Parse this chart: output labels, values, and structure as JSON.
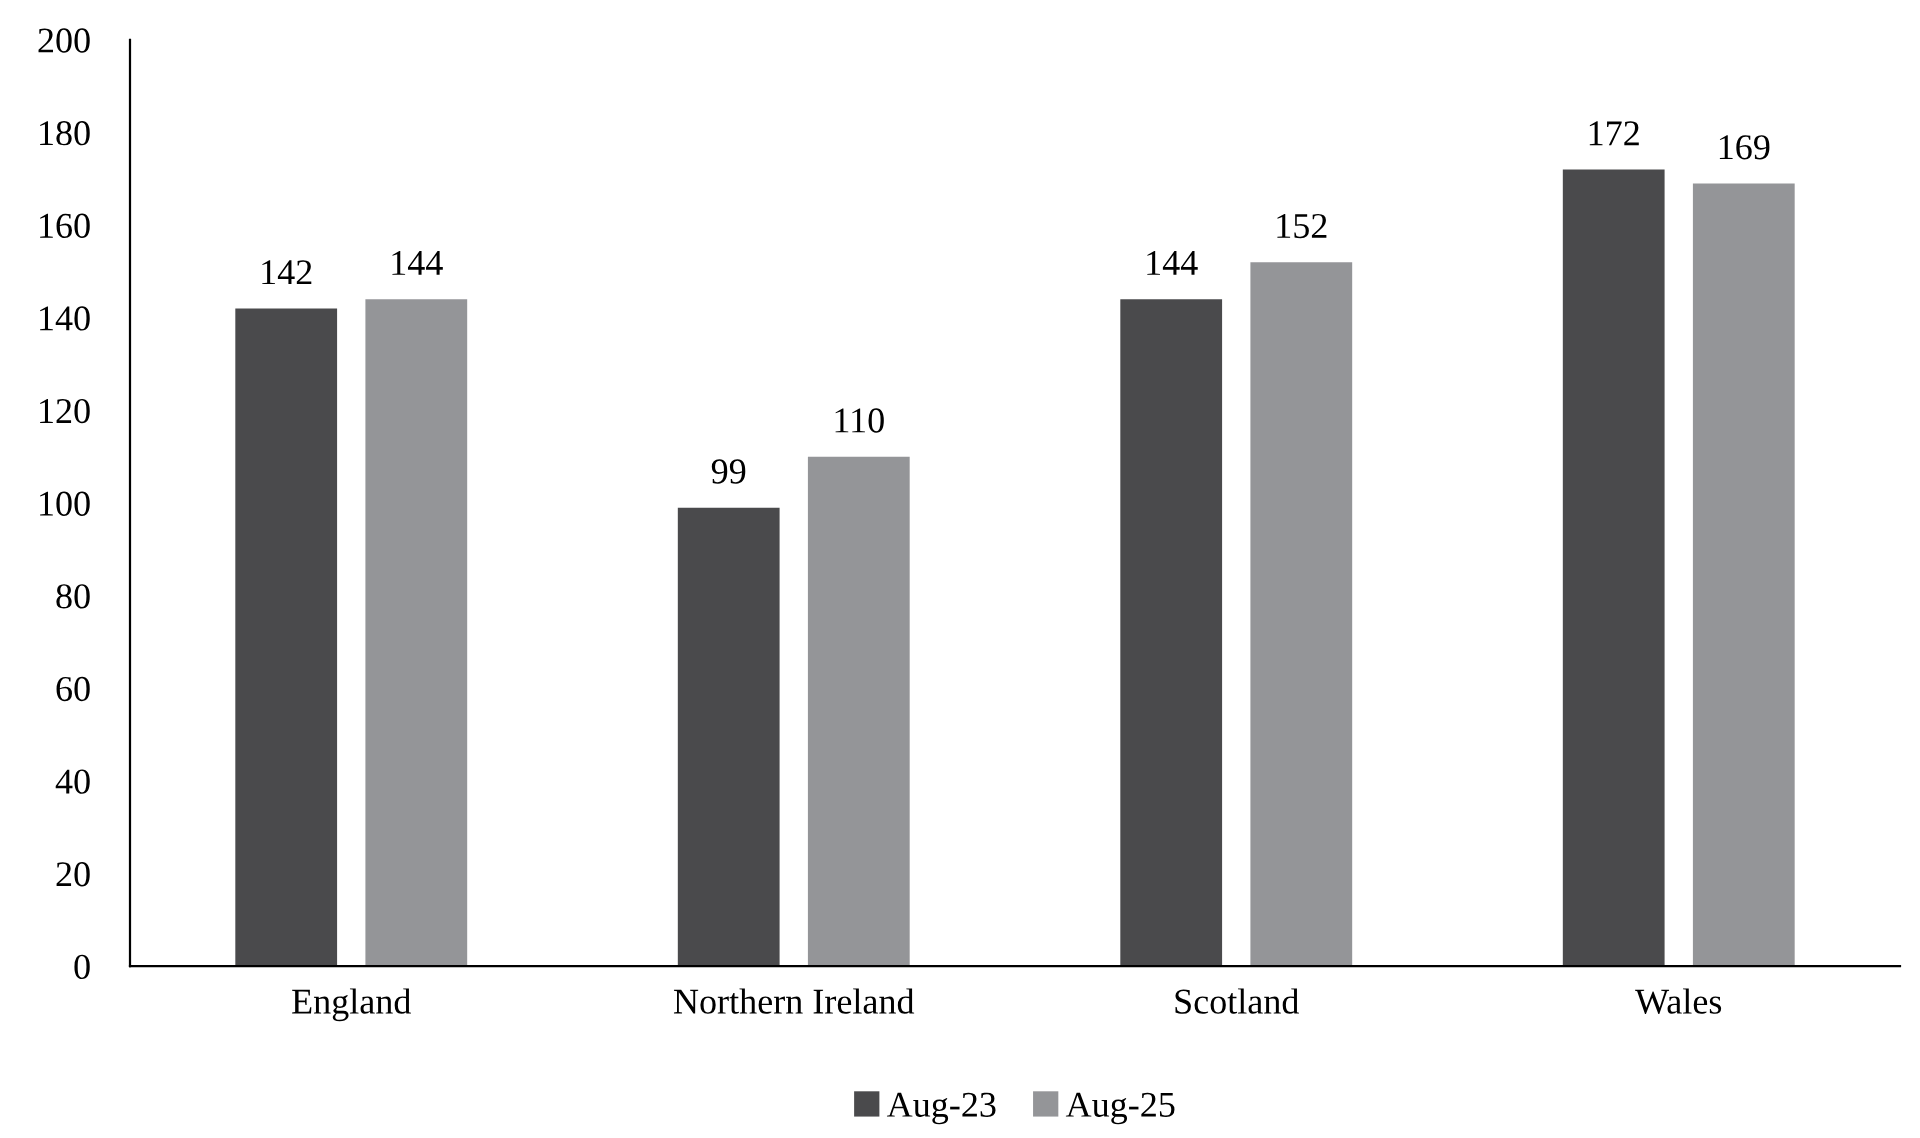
{
  "chart_data": {
    "type": "bar",
    "categories": [
      "England",
      "Northern Ireland",
      "Scotland",
      "Wales"
    ],
    "series": [
      {
        "name": "Aug-23",
        "color": "#4a4a4c",
        "values": [
          142,
          99,
          144,
          172
        ]
      },
      {
        "name": "Aug-25",
        "color": "#949598",
        "values": [
          144,
          110,
          152,
          169
        ]
      }
    ],
    "ylim": [
      0,
      200
    ],
    "yticks": [
      0,
      20,
      40,
      60,
      80,
      100,
      120,
      140,
      160,
      180,
      200
    ],
    "data_labels": true,
    "grid": false,
    "legend": "bottom"
  }
}
